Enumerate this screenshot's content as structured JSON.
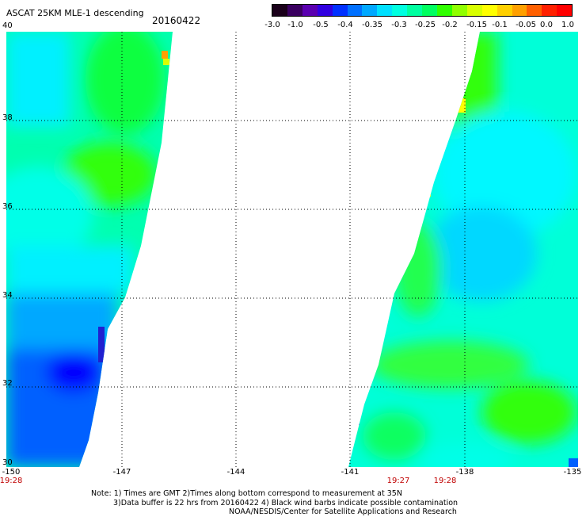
{
  "title": "ASCAT 25KM MLE-1 descending",
  "date": "20160422",
  "colorbar": {
    "labels": [
      "-3.0",
      "-1.0",
      "-0.5",
      "-0.4",
      "-0.35",
      "-0.3",
      "-0.25",
      "-0.2",
      "-0.15",
      "-0.1",
      "-0.05",
      "0.0",
      "1.0"
    ],
    "colors": [
      "#1a001a",
      "#3a0060",
      "#5a00b0",
      "#3000e0",
      "#0030ff",
      "#0070ff",
      "#00a8ff",
      "#00e0ff",
      "#00ffe0",
      "#00ffa0",
      "#00ff60",
      "#30ff00",
      "#90ff00",
      "#d8ff00",
      "#ffff00",
      "#ffd000",
      "#ffa000",
      "#ff6000",
      "#ff2000",
      "#ff0000"
    ]
  },
  "map": {
    "lat_labels": [
      "40",
      "38",
      "36",
      "34",
      "32",
      "30"
    ],
    "lon_labels": [
      "-150",
      "-147",
      "-144",
      "-141",
      "-138",
      "-135"
    ],
    "time_labels": [
      "19:28",
      "19:27",
      "19:28"
    ]
  },
  "notes": [
    "Note: 1) Times are GMT 2)Times along bottom correspond to measurement at 35N",
    "3)Data buffer is 22 hrs from 20160422 4) Black wind barbs indicate possible contamination",
    "NOAA/NESDIS/Center for Satellite Applications and Research"
  ]
}
